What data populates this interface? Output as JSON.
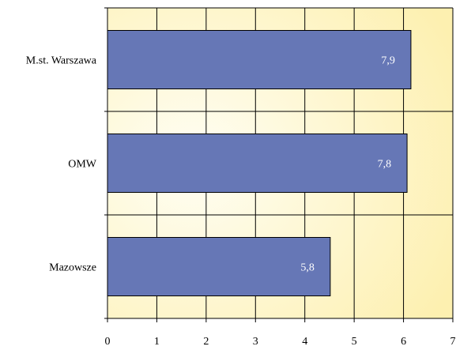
{
  "chart_data": {
    "type": "bar",
    "orientation": "horizontal",
    "categories": [
      "M.st. Warszawa",
      "OMW",
      "Mazowsze"
    ],
    "values": [
      7.9,
      7.8,
      5.8
    ],
    "value_labels": [
      "7,9",
      "7,8",
      "5,8"
    ],
    "xlim": [
      0,
      7
    ],
    "xticks": [
      0,
      1,
      2,
      3,
      4,
      5,
      6,
      7
    ],
    "xtick_labels": [
      "0",
      "1",
      "2",
      "3",
      "4",
      "5",
      "6",
      "7"
    ],
    "grid": true,
    "legend": "none",
    "colors": {
      "bar": "#6677b6",
      "bar_stroke": "#000000",
      "plot_bg_light": "#fffef2",
      "plot_bg_dark": "#fdf3b8",
      "label_text": "#ffffff"
    }
  }
}
